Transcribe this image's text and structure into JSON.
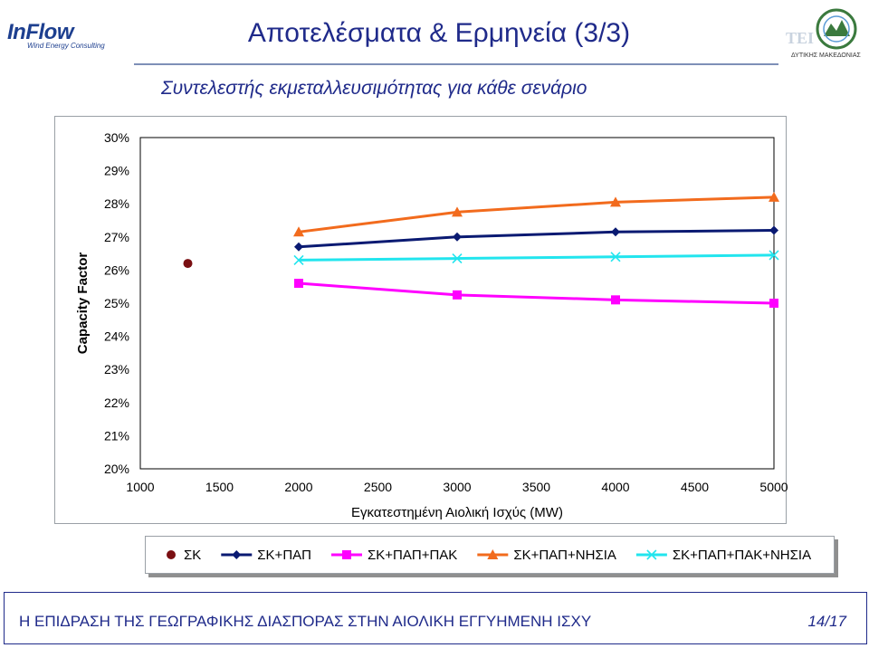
{
  "header": {
    "title": "Αποτελέσματα & Ερμηνεία (3/3)",
    "subtitle": "Συντελεστής εκμεταλλευσιμότητας για κάθε σενάριο"
  },
  "logos": {
    "left_brand": "InFlow",
    "left_tagline": "Wind Energy Consulting",
    "right_brand": "TEI",
    "right_region": "ΔΥΤΙΚΗΣ ΜΑΚΕΔΟΝΙΑΣ"
  },
  "chart_data": {
    "type": "line",
    "xlabel": "Εγκατεστημένη Αιολική Ισχύς (MW)",
    "ylabel": "Capacity Factor",
    "xlim": [
      1000,
      5000
    ],
    "ylim": [
      20,
      30
    ],
    "x_ticks": [
      "1000",
      "1500",
      "2000",
      "2500",
      "3000",
      "3500",
      "4000",
      "4500",
      "5000"
    ],
    "y_ticks": [
      "20%",
      "21%",
      "22%",
      "23%",
      "24%",
      "25%",
      "26%",
      "27%",
      "28%",
      "29%",
      "30%"
    ],
    "legend_position": "bottom",
    "grid": false,
    "series": [
      {
        "name": "ΣΚ",
        "marker": "circle",
        "color": "#7a0f12",
        "line": false,
        "points": [
          [
            1300,
            26.2
          ]
        ]
      },
      {
        "name": "ΣΚ+ΠΑΠ",
        "marker": "diamond",
        "color": "#0a1a72",
        "line": true,
        "points": [
          [
            2000,
            26.7
          ],
          [
            3000,
            27.0
          ],
          [
            4000,
            27.15
          ],
          [
            5000,
            27.2
          ]
        ]
      },
      {
        "name": "ΣΚ+ΠΑΠ+ΠΑΚ",
        "marker": "square",
        "color": "#ff00ff",
        "line": true,
        "points": [
          [
            2000,
            25.6
          ],
          [
            3000,
            25.25
          ],
          [
            4000,
            25.1
          ],
          [
            5000,
            25.0
          ]
        ]
      },
      {
        "name": "ΣΚ+ΠΑΠ+ΝΗΣΙΑ",
        "marker": "triangle",
        "color": "#f26b1d",
        "line": true,
        "points": [
          [
            2000,
            27.15
          ],
          [
            3000,
            27.75
          ],
          [
            4000,
            28.05
          ],
          [
            5000,
            28.2
          ]
        ]
      },
      {
        "name": "ΣΚ+ΠΑΠ+ΠΑΚ+ΝΗΣΙΑ",
        "marker": "x",
        "color": "#22e5ee",
        "line": true,
        "points": [
          [
            2000,
            26.3
          ],
          [
            3000,
            26.35
          ],
          [
            4000,
            26.4
          ],
          [
            5000,
            26.45
          ]
        ]
      }
    ]
  },
  "footer": {
    "text": "Η ΕΠΙΔΡΑΣΗ ΤΗΣ ΓΕΩΓΡΑΦΙΚΗΣ ΔΙΑΣΠΟΡΑΣ ΣΤΗΝ ΑΙΟΛΙΚΗ ΕΓΓΥΗΜΕΝΗ ΙΣΧΥ",
    "page": "14/17"
  }
}
